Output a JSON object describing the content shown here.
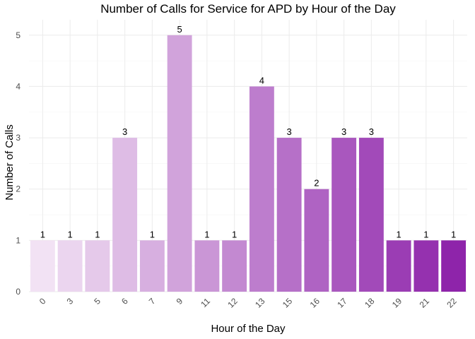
{
  "chart_data": {
    "type": "bar",
    "title": "Number of Calls for Service for APD by Hour of the Day",
    "xlabel": "Hour of the Day",
    "ylabel": "Number of Calls",
    "categories": [
      "0",
      "3",
      "5",
      "6",
      "7",
      "9",
      "11",
      "12",
      "13",
      "15",
      "16",
      "17",
      "18",
      "19",
      "21",
      "22"
    ],
    "values": [
      1,
      1,
      1,
      3,
      1,
      5,
      1,
      1,
      4,
      3,
      2,
      3,
      3,
      1,
      1,
      1
    ],
    "ylim": [
      0,
      5.3
    ],
    "yticks": [
      0,
      1,
      2,
      3,
      4,
      5
    ],
    "grid": true,
    "legend": "none",
    "data_labels": true,
    "x_tick_rotation": 45,
    "colors": {
      "gradient_start": "#f2e2f4",
      "gradient_end": "#8e24aa",
      "grid": "#ebebeb",
      "tick_text": "#4d4d4d"
    }
  }
}
